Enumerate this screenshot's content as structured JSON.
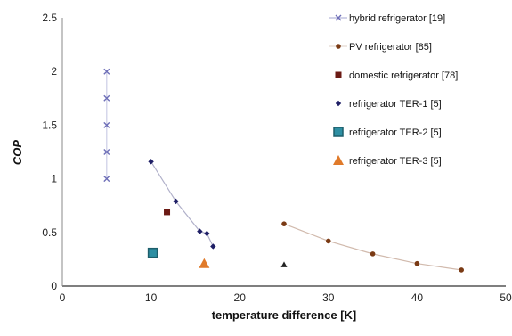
{
  "chart_data": {
    "type": "scatter",
    "title": "",
    "xlabel": "temperature difference [K]",
    "ylabel": "COP",
    "xlim": [
      0,
      50
    ],
    "ylim": [
      0,
      2.5
    ],
    "xticks": [
      "0",
      "10",
      "20",
      "30",
      "40",
      "50"
    ],
    "yticks": [
      "0",
      "0.5",
      "1",
      "1.5",
      "2",
      "2.5"
    ],
    "grid": false,
    "legend_position": "right",
    "series": [
      {
        "name": "hybrid refrigerator [19]",
        "marker": "x",
        "color": "#6e6fb8",
        "line": true,
        "points": [
          [
            5,
            2.0
          ],
          [
            5,
            1.75
          ],
          [
            5,
            1.5
          ],
          [
            5,
            1.25
          ],
          [
            5,
            1.0
          ]
        ]
      },
      {
        "name": "PV refrigerator [85]",
        "marker": "circle",
        "color": "#7a3a14",
        "line": true,
        "points": [
          [
            25,
            0.58
          ],
          [
            30,
            0.42
          ],
          [
            35,
            0.3
          ],
          [
            40,
            0.21
          ],
          [
            45,
            0.15
          ]
        ]
      },
      {
        "name": "domestic refrigerator [78]",
        "marker": "square",
        "color": "#6b1a14",
        "line": false,
        "points": [
          [
            11.8,
            0.69
          ]
        ]
      },
      {
        "name": "refrigerator TER-1 [5]",
        "marker": "diamond",
        "color": "#1f1f66",
        "line": true,
        "points": [
          [
            10,
            1.16
          ],
          [
            12.8,
            0.79
          ],
          [
            15.5,
            0.51
          ],
          [
            16.3,
            0.49
          ],
          [
            17,
            0.37
          ]
        ]
      },
      {
        "name": "refrigerator TER-2 [5]",
        "marker": "square-large",
        "color": "#2e8fa3",
        "line": false,
        "points": [
          [
            10.2,
            0.31
          ]
        ]
      },
      {
        "name": "refrigerator TER-3 [5]",
        "marker": "triangle",
        "color": "#e07a2a",
        "line": false,
        "points": [
          [
            16,
            0.21
          ],
          [
            25,
            0.2
          ]
        ]
      }
    ]
  }
}
